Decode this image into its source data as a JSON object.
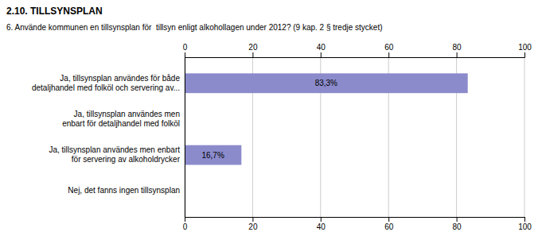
{
  "chart_data": {
    "type": "bar",
    "orientation": "horizontal",
    "title": "2.10. TILLSYNSPLAN",
    "subtitle": "6. Använde kommunen en tillsynsplan för  tillsyn enligt alkohollagen under 2012? (9 kap. 2 § tredje stycket)",
    "categories": [
      "Ja, tillsynsplan användes för både\ndetaljhandel med folköl och servering av...",
      "Ja, tillsynsplan användes men\nenbart för detaljhandel med folköl",
      "Ja, tillsynsplan användes men enbart\nför servering av alkoholdrycker",
      "Nej, det fanns ingen tillsynsplan"
    ],
    "values": [
      83.3,
      0.0,
      16.7,
      0.0
    ],
    "value_labels": [
      "83,3%",
      null,
      "16,7%",
      null
    ],
    "data_labels": true,
    "color": "#8b8bcc",
    "xlim": [
      0,
      100
    ],
    "xticks": [
      0,
      20,
      40,
      60,
      80,
      100
    ],
    "grid": true
  }
}
